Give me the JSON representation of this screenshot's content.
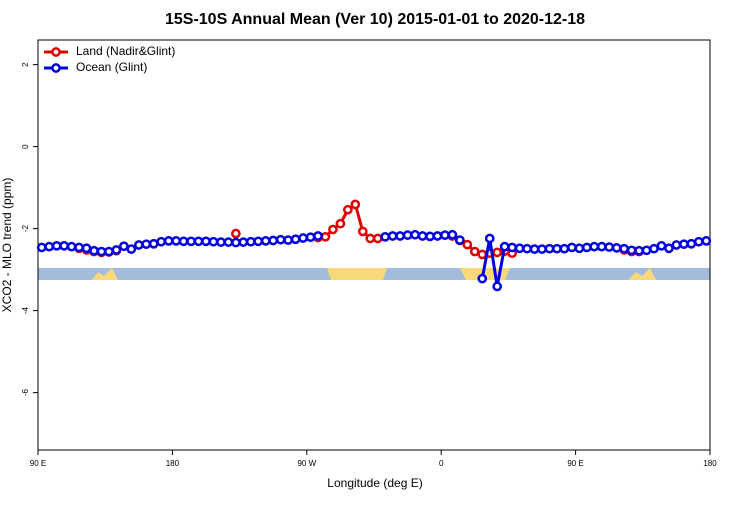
{
  "chart_data": {
    "type": "line",
    "title": "15S-10S Annual Mean (Ver 10)   2015-01-01 to 2020-12-18",
    "x_label": "Longitude (deg E)",
    "y_label": "XCO2 - MLO trend (ppm)",
    "xlim": [
      90,
      540
    ],
    "ylim": [
      -7.4,
      2.6
    ],
    "xticks": [
      {
        "value": 90,
        "label": "90 E"
      },
      {
        "value": 180,
        "label": "180"
      },
      {
        "value": 270,
        "label": "90 W"
      },
      {
        "value": 360,
        "label": "0"
      },
      {
        "value": 450,
        "label": "90 E"
      },
      {
        "value": 540,
        "label": "180"
      }
    ],
    "yticks": [
      -6,
      -4,
      -2,
      0,
      2
    ],
    "legend": "top-left",
    "x": [
      92.5,
      97.5,
      102.5,
      107.5,
      112.5,
      117.5,
      122.5,
      127.5,
      132.5,
      137.5,
      142.5,
      147.5,
      152.5,
      157.5,
      162.5,
      167.5,
      172.5,
      177.5,
      182.5,
      187.5,
      192.5,
      197.5,
      202.5,
      207.5,
      212.5,
      217.5,
      222.5,
      227.5,
      232.5,
      237.5,
      242.5,
      247.5,
      252.5,
      257.5,
      262.5,
      267.5,
      272.5,
      277.5,
      282.5,
      287.5,
      292.5,
      297.5,
      302.5,
      307.5,
      312.5,
      317.5,
      322.5,
      327.5,
      332.5,
      337.5,
      342.5,
      347.5,
      352.5,
      357.5,
      362.5,
      367.5,
      372.5,
      377.5,
      382.5,
      387.5,
      392.5,
      397.5,
      402.5,
      407.5,
      412.5,
      417.5,
      422.5,
      427.5,
      432.5,
      437.5,
      442.5,
      447.5,
      452.5,
      457.5,
      462.5,
      467.5,
      472.5,
      477.5,
      482.5,
      487.5,
      492.5,
      497.5,
      502.5,
      507.5,
      512.5,
      517.5,
      522.5,
      527.5,
      532.5,
      537.5
    ],
    "series": [
      {
        "name": "Land (Nadir&Glint)",
        "color": "#e00000",
        "values": [
          null,
          null,
          null,
          null,
          null,
          -2.48,
          -2.52,
          -2.56,
          -2.58,
          -2.57,
          -2.54,
          null,
          null,
          null,
          null,
          null,
          null,
          null,
          null,
          null,
          null,
          null,
          null,
          null,
          null,
          null,
          -2.12,
          null,
          null,
          null,
          null,
          null,
          null,
          null,
          null,
          null,
          null,
          -2.22,
          -2.2,
          -2.02,
          -1.88,
          -1.54,
          -1.41,
          -2.07,
          -2.24,
          -2.24,
          null,
          null,
          null,
          null,
          null,
          null,
          null,
          null,
          null,
          -2.18,
          -2.29,
          -2.39,
          -2.56,
          -2.63,
          -2.6,
          -2.58,
          -2.55,
          -2.6,
          null,
          null,
          null,
          null,
          null,
          null,
          null,
          null,
          null,
          null,
          null,
          null,
          null,
          null,
          -2.52,
          -2.56,
          -2.56,
          null,
          null,
          null,
          null,
          null,
          null,
          null,
          null,
          null
        ]
      },
      {
        "name": "Ocean (Glint)",
        "color": "#0000e0",
        "values": [
          -2.46,
          -2.44,
          -2.42,
          -2.42,
          -2.44,
          -2.46,
          -2.48,
          -2.54,
          -2.56,
          -2.56,
          -2.52,
          -2.43,
          -2.5,
          -2.4,
          -2.38,
          -2.37,
          -2.32,
          -2.3,
          -2.3,
          -2.31,
          -2.31,
          -2.31,
          -2.31,
          -2.32,
          -2.33,
          -2.33,
          -2.34,
          -2.33,
          -2.32,
          -2.31,
          -2.3,
          -2.29,
          -2.27,
          -2.28,
          -2.26,
          -2.23,
          -2.21,
          -2.18,
          null,
          null,
          null,
          null,
          null,
          null,
          null,
          null,
          -2.2,
          -2.18,
          -2.18,
          -2.16,
          -2.15,
          -2.18,
          -2.19,
          -2.18,
          -2.16,
          -2.15,
          -2.28,
          null,
          null,
          -3.22,
          -2.24,
          -3.41,
          -2.44,
          -2.46,
          -2.48,
          -2.49,
          -2.5,
          -2.5,
          -2.49,
          -2.49,
          -2.49,
          -2.46,
          -2.48,
          -2.46,
          -2.44,
          -2.44,
          -2.45,
          -2.47,
          -2.49,
          -2.53,
          -2.54,
          -2.53,
          -2.49,
          -2.42,
          -2.48,
          -2.4,
          -2.38,
          -2.37,
          -2.32,
          -2.3
        ]
      }
    ]
  }
}
